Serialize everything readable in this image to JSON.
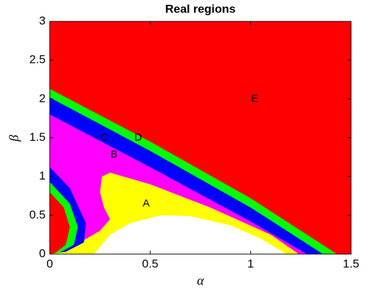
{
  "chart_data": {
    "type": "region",
    "title": "Real regions",
    "xlabel": "α",
    "ylabel": "β",
    "xlim": [
      0,
      1.5
    ],
    "ylim": [
      0,
      3
    ],
    "xticks": [
      0,
      0.5,
      1,
      1.5
    ],
    "yticks": [
      0,
      0.5,
      1,
      1.5,
      2,
      2.5,
      3
    ],
    "regions": [
      {
        "color": "#ff0000",
        "x": [
          0,
          1.5,
          1.5,
          0
        ],
        "y": [
          0,
          0,
          3,
          3
        ]
      },
      {
        "color": "#00ff00",
        "x": [
          0,
          0.5,
          1.0,
          1.43,
          0
        ],
        "y": [
          2.13,
          1.45,
          0.72,
          0,
          0
        ]
      },
      {
        "color": "#0000ff",
        "x": [
          0,
          0.5,
          1.0,
          1.36,
          0
        ],
        "y": [
          2.02,
          1.33,
          0.6,
          0,
          0
        ]
      },
      {
        "color": "#ff00ff",
        "x": [
          0,
          0.5,
          1.0,
          1.28,
          0
        ],
        "y": [
          1.8,
          1.12,
          0.42,
          0,
          0
        ]
      },
      {
        "color": "#ffff00",
        "x": [
          0,
          0.05,
          0.15,
          0.25,
          0.3,
          0.27,
          0.25,
          0.26,
          0.3,
          0.5,
          0.8,
          1.1,
          1.24
        ],
        "y": [
          0,
          0.03,
          0.15,
          0.3,
          0.45,
          0.6,
          0.8,
          1.0,
          1.05,
          0.9,
          0.6,
          0.25,
          0
        ]
      },
      {
        "color": "#ffffff",
        "x": [
          0.22,
          0.3,
          0.4,
          0.55,
          0.7,
          0.9,
          1.05,
          1.18
        ],
        "y": [
          0,
          0.25,
          0.4,
          0.5,
          0.49,
          0.37,
          0.2,
          0
        ]
      },
      {
        "color": "#0000ff",
        "x": [
          0,
          0,
          0.1,
          0.18,
          0.17,
          0.08
        ],
        "y": [
          0,
          1.12,
          0.85,
          0.4,
          0.15,
          0.03
        ]
      },
      {
        "color": "#00ff00",
        "x": [
          0,
          0,
          0.1,
          0.14,
          0.12,
          0.05
        ],
        "y": [
          0,
          0.93,
          0.65,
          0.35,
          0.12,
          0.02
        ]
      },
      {
        "color": "#ff0000",
        "x": [
          0,
          0,
          0.07,
          0.1,
          0.08,
          0.03
        ],
        "y": [
          0,
          0.8,
          0.6,
          0.35,
          0.12,
          0.02
        ]
      }
    ],
    "annotations": [
      {
        "text": "A",
        "x": 0.48,
        "y": 0.65
      },
      {
        "text": "B",
        "x": 0.32,
        "y": 1.28
      },
      {
        "text": "C",
        "x": 0.27,
        "y": 1.5
      },
      {
        "text": "D",
        "x": 0.44,
        "y": 1.5
      },
      {
        "text": "E",
        "x": 1.02,
        "y": 2.0
      }
    ]
  }
}
